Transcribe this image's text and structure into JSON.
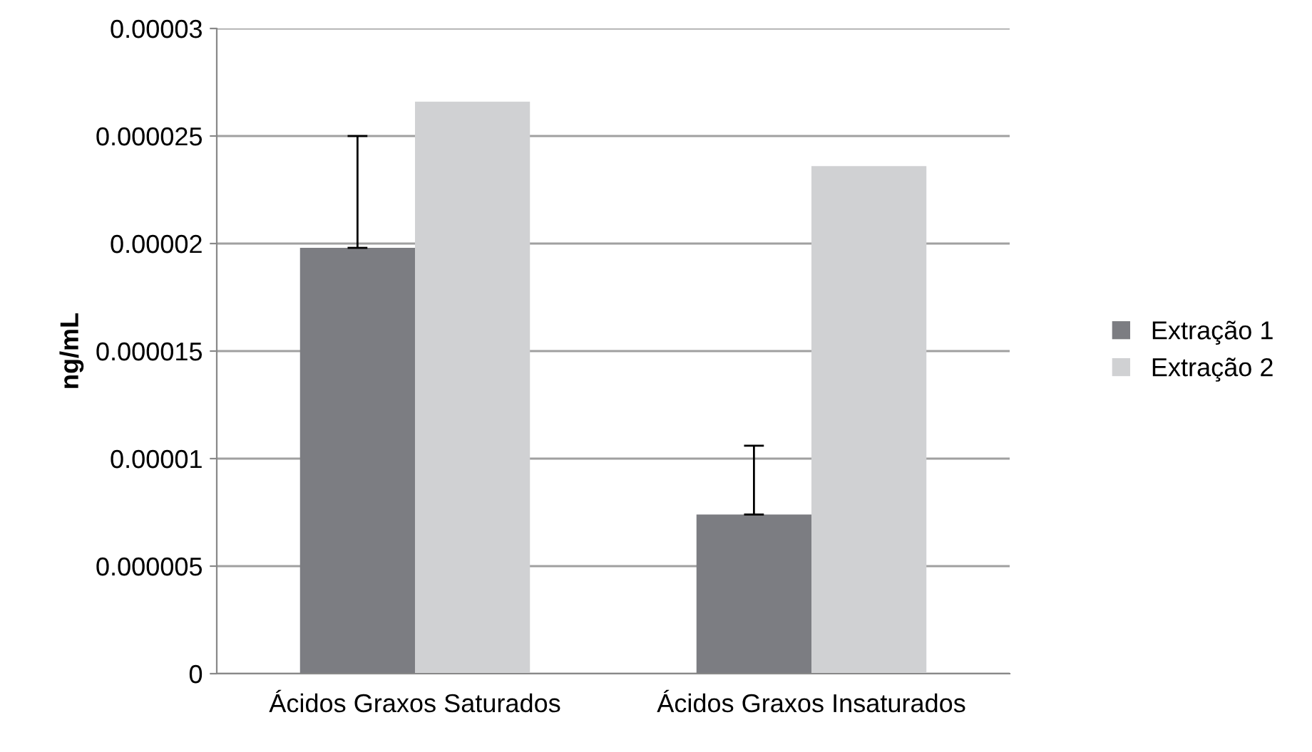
{
  "chart_data": {
    "type": "bar",
    "ylabel": "ng/mL",
    "categories": [
      "Ácidos Graxos Saturados",
      "Ácidos Graxos Insaturados"
    ],
    "series": [
      {
        "name": "Extração 1",
        "color": "#7c7d82",
        "values": [
          1.98e-05,
          7.4e-06
        ],
        "errors": [
          [
            1.98e-05,
            2.5e-05
          ],
          [
            7.4e-06,
            1.06e-05
          ]
        ]
      },
      {
        "name": "Extração 2",
        "color": "#d0d1d3",
        "values": [
          2.66e-05,
          2.36e-05
        ]
      }
    ],
    "ylim": [
      0,
      3e-05
    ],
    "yticks": [
      0,
      {
        "value": 5e-06,
        "label": "0.000005"
      },
      {
        "value": 1e-05,
        "label": "0.00001"
      },
      {
        "value": 1.5e-05,
        "label": "0.000015"
      },
      {
        "value": 2e-05,
        "label": "0.00002"
      },
      {
        "value": 2.5e-05,
        "label": "0.000025"
      },
      {
        "value": 3e-05,
        "label": "0.00003"
      }
    ],
    "grid": "y",
    "legend": "right"
  }
}
